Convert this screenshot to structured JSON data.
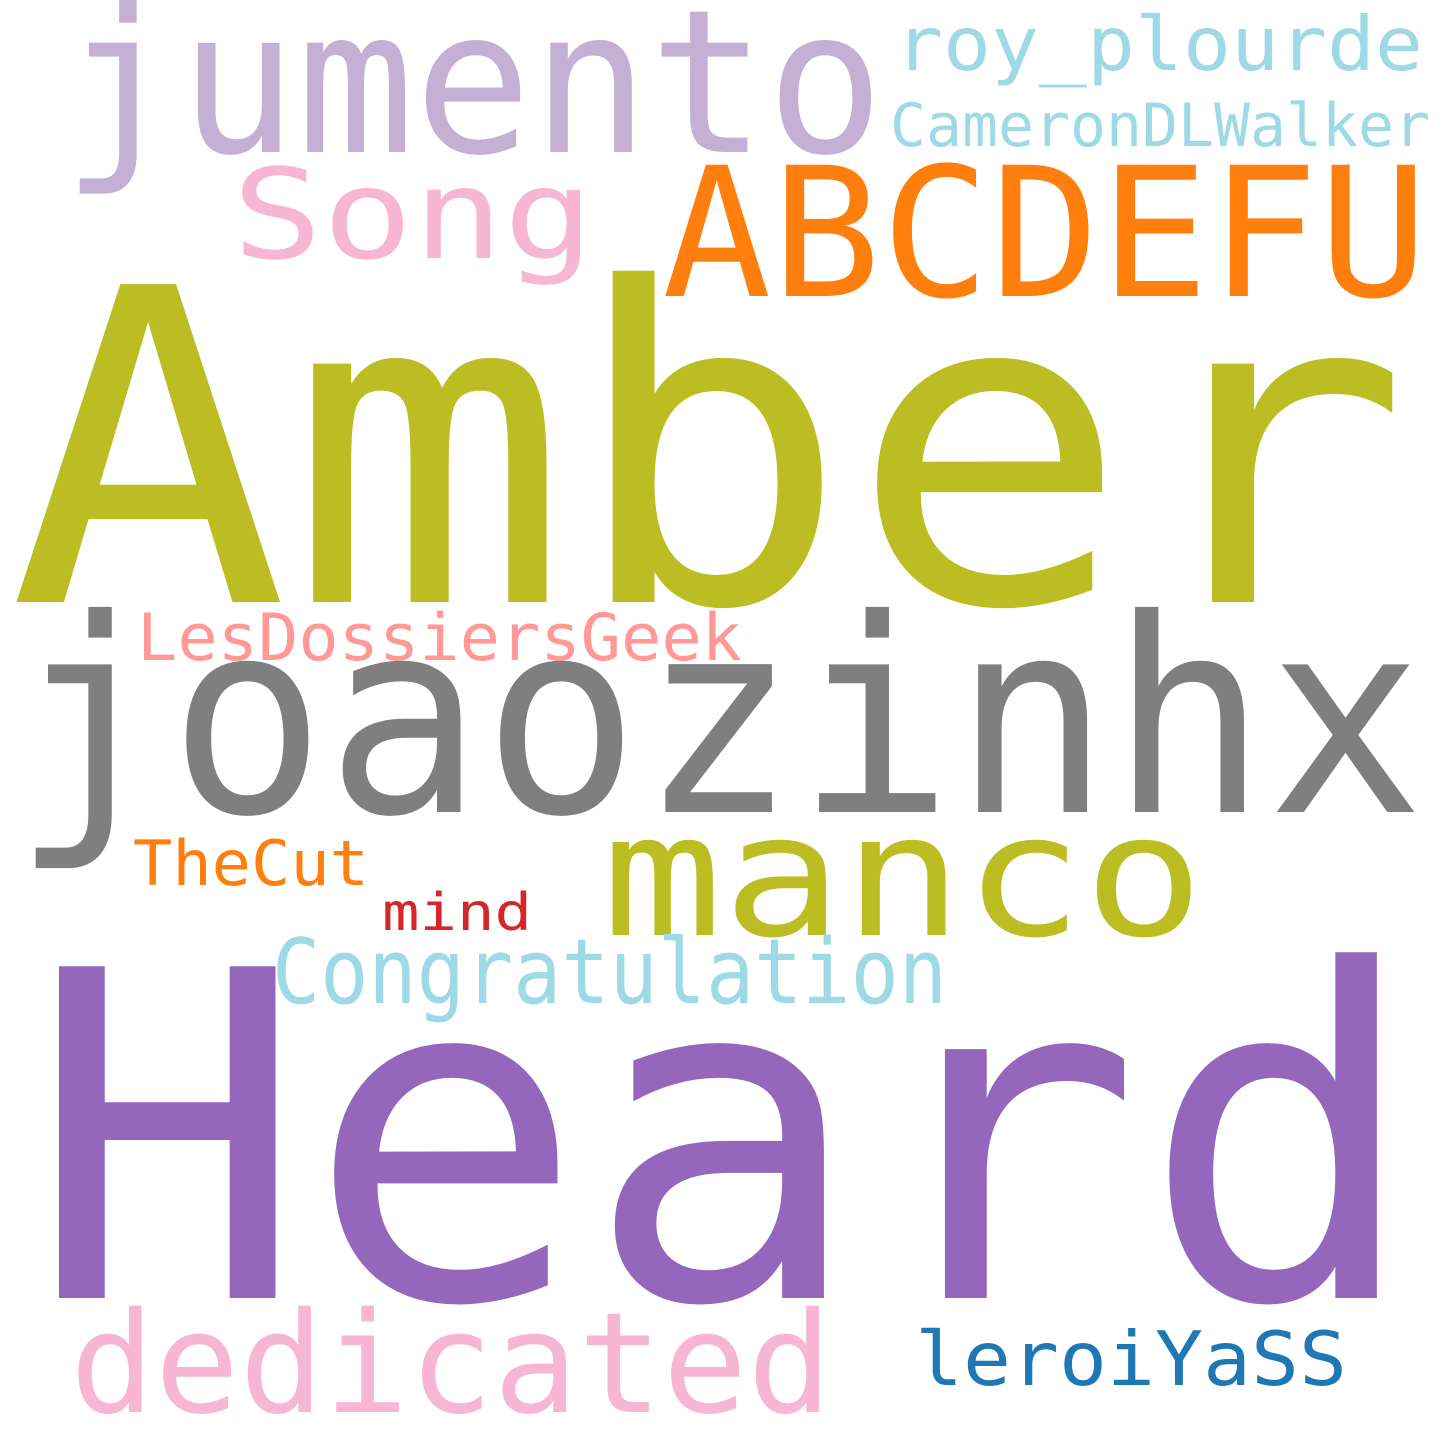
{
  "words": [
    {
      "text": "Heard",
      "color": "#9467bd"
    },
    {
      "text": "Amber",
      "color": "#bcbd22"
    },
    {
      "text": "joaozinhx",
      "color": "#7f7f7f"
    },
    {
      "text": "jumento",
      "color": "#c5b0d5"
    },
    {
      "text": "ABCDEFU",
      "color": "#ff7f0e"
    },
    {
      "text": "manco",
      "color": "#bcbd22"
    },
    {
      "text": "dedicated",
      "color": "#f7b6d2"
    },
    {
      "text": "Song",
      "color": "#f7b6d2"
    },
    {
      "text": "Congratulation",
      "color": "#9edae5"
    },
    {
      "text": "roy_plourde",
      "color": "#9edae5"
    },
    {
      "text": "leroiYaSS",
      "color": "#1f77b4"
    },
    {
      "text": "LesDossiersGeek",
      "color": "#ff9896"
    },
    {
      "text": "CameronDLWalker",
      "color": "#9edae5"
    },
    {
      "text": "TheCut",
      "color": "#ff7f0e"
    },
    {
      "text": "mind",
      "color": "#d62728"
    }
  ]
}
